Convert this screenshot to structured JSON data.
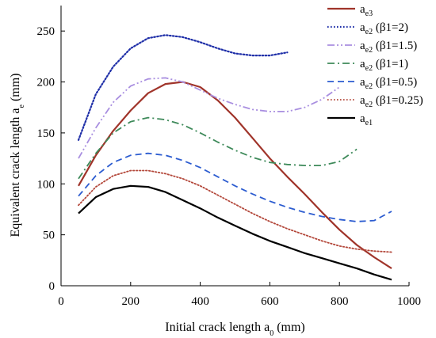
{
  "chart_data": {
    "type": "line",
    "xlabel": "Initial crack length a",
    "xlabel_sub": "0",
    "xlabel_unit": " (mm)",
    "ylabel": "Equivalent crack length a",
    "ylabel_sub": "e",
    "ylabel_unit": " (mm)",
    "xlim": [
      0,
      1000
    ],
    "ylim": [
      0,
      275
    ],
    "xticks": [
      0,
      200,
      400,
      600,
      800,
      1000
    ],
    "yticks": [
      0,
      50,
      100,
      150,
      200,
      250
    ],
    "legend_position": "top-right",
    "grid": false,
    "series": [
      {
        "name": "a",
        "name_sub": "e3",
        "name_suffix": "",
        "color": "#A0342A",
        "dash": "solid",
        "width": 2.2,
        "x": [
          50,
          100,
          150,
          200,
          250,
          300,
          350,
          400,
          450,
          500,
          550,
          600,
          650,
          700,
          750,
          800,
          850,
          900,
          950
        ],
        "y": [
          98,
          128,
          152,
          172,
          189,
          198,
          200,
          195,
          182,
          165,
          145,
          125,
          107,
          90,
          72,
          55,
          40,
          28,
          17
        ]
      },
      {
        "name": "a",
        "name_sub": "e2",
        "name_suffix": " (β1=2)",
        "color": "#1F2FA8",
        "dash": "dotted",
        "width": 2.2,
        "x": [
          50,
          100,
          150,
          200,
          250,
          300,
          350,
          400,
          450,
          500,
          550,
          600,
          650
        ],
        "y": [
          143,
          188,
          215,
          233,
          243,
          246,
          244,
          239,
          233,
          228,
          226,
          226,
          229
        ]
      },
      {
        "name": "a",
        "name_sub": "e2",
        "name_suffix": " (β1=1.5)",
        "color": "#A98FE0",
        "dash": "dashdotdot",
        "width": 1.8,
        "x": [
          50,
          100,
          150,
          200,
          250,
          300,
          350,
          400,
          450,
          500,
          550,
          600,
          650,
          700,
          750,
          800
        ],
        "y": [
          125,
          155,
          180,
          196,
          203,
          204,
          200,
          192,
          184,
          178,
          173,
          171,
          171,
          175,
          183,
          195
        ]
      },
      {
        "name": "a",
        "name_sub": "e2",
        "name_suffix": " (β1=1)",
        "color": "#3E8A5A",
        "dash": "dashdot",
        "width": 1.8,
        "x": [
          50,
          100,
          150,
          200,
          250,
          300,
          350,
          400,
          450,
          500,
          550,
          600,
          650,
          700,
          750,
          800,
          850
        ],
        "y": [
          105,
          130,
          150,
          161,
          165,
          163,
          158,
          150,
          141,
          133,
          126,
          121,
          119,
          118,
          118,
          122,
          134
        ]
      },
      {
        "name": "a",
        "name_sub": "e2",
        "name_suffix": " (β1=0.5)",
        "color": "#2C5CD0",
        "dash": "dashed",
        "width": 1.8,
        "x": [
          50,
          100,
          150,
          200,
          250,
          300,
          350,
          400,
          450,
          500,
          550,
          600,
          650,
          700,
          750,
          800,
          850,
          900,
          950
        ],
        "y": [
          88,
          108,
          121,
          128,
          130,
          128,
          123,
          116,
          107,
          98,
          90,
          83,
          77,
          72,
          68,
          65,
          63,
          64,
          73
        ]
      },
      {
        "name": "a",
        "name_sub": "e2",
        "name_suffix": " (β1=0.25)",
        "color": "#B3473A",
        "dash": "dotted",
        "width": 1.8,
        "x": [
          50,
          100,
          150,
          200,
          250,
          300,
          350,
          400,
          450,
          500,
          550,
          600,
          650,
          700,
          750,
          800,
          850,
          900,
          950
        ],
        "y": [
          79,
          97,
          108,
          113,
          113,
          110,
          105,
          98,
          89,
          80,
          71,
          63,
          56,
          50,
          44,
          39,
          36,
          34,
          33
        ]
      },
      {
        "name": "a",
        "name_sub": "e1",
        "name_suffix": "",
        "color": "#000000",
        "dash": "solid",
        "width": 2.2,
        "x": [
          50,
          100,
          150,
          200,
          250,
          300,
          350,
          400,
          450,
          500,
          550,
          600,
          650,
          700,
          750,
          800,
          850,
          900,
          950
        ],
        "y": [
          71,
          87,
          95,
          98,
          97,
          92,
          84,
          76,
          67,
          59,
          51,
          44,
          38,
          32,
          27,
          22,
          17,
          11,
          6
        ]
      }
    ]
  }
}
